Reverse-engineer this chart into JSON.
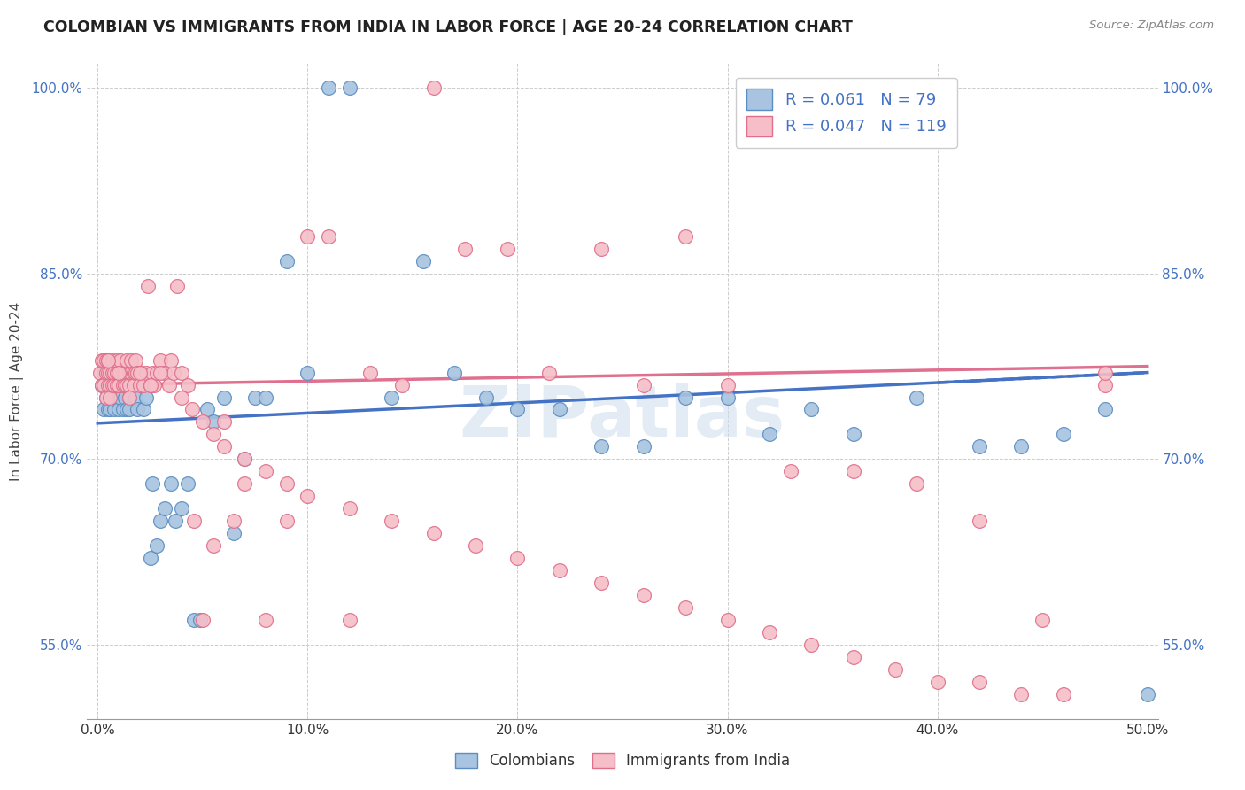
{
  "title": "COLOMBIAN VS IMMIGRANTS FROM INDIA IN LABOR FORCE | AGE 20-24 CORRELATION CHART",
  "source": "Source: ZipAtlas.com",
  "ylabel": "In Labor Force | Age 20-24",
  "xlim": [
    -0.005,
    0.505
  ],
  "ylim": [
    0.49,
    1.02
  ],
  "xtick_vals": [
    0.0,
    0.1,
    0.2,
    0.3,
    0.4,
    0.5
  ],
  "ytick_left": [
    1.0,
    0.85,
    0.7,
    0.55
  ],
  "ytick_right": [
    1.0,
    0.85,
    0.7,
    0.55
  ],
  "ytick_labels_left": [
    "100.0%",
    "85.0%",
    "70.0%",
    "55.0%"
  ],
  "ytick_labels_right": [
    "100.0%",
    "85.0%",
    "70.0%",
    "55.0%"
  ],
  "blue_fill": "#A8C4E0",
  "blue_edge": "#5B8EC4",
  "pink_fill": "#F5BEC8",
  "pink_edge": "#E0708A",
  "blue_line": "#4472C4",
  "pink_line": "#E07090",
  "R_blue": 0.061,
  "N_blue": 79,
  "R_pink": 0.047,
  "N_pink": 119,
  "watermark": "ZIPatlas",
  "blue_x": [
    0.002,
    0.003,
    0.003,
    0.004,
    0.004,
    0.004,
    0.005,
    0.005,
    0.005,
    0.006,
    0.006,
    0.007,
    0.007,
    0.008,
    0.008,
    0.009,
    0.009,
    0.009,
    0.01,
    0.01,
    0.011,
    0.011,
    0.012,
    0.012,
    0.013,
    0.013,
    0.014,
    0.014,
    0.015,
    0.015,
    0.016,
    0.017,
    0.018,
    0.019,
    0.02,
    0.021,
    0.022,
    0.023,
    0.025,
    0.026,
    0.028,
    0.03,
    0.032,
    0.035,
    0.037,
    0.04,
    0.043,
    0.046,
    0.049,
    0.052,
    0.055,
    0.06,
    0.065,
    0.07,
    0.075,
    0.08,
    0.09,
    0.1,
    0.11,
    0.12,
    0.14,
    0.155,
    0.17,
    0.185,
    0.2,
    0.22,
    0.24,
    0.26,
    0.28,
    0.3,
    0.32,
    0.34,
    0.36,
    0.39,
    0.42,
    0.44,
    0.46,
    0.48,
    0.5
  ],
  "blue_y": [
    0.76,
    0.74,
    0.77,
    0.75,
    0.78,
    0.76,
    0.74,
    0.76,
    0.77,
    0.75,
    0.74,
    0.77,
    0.76,
    0.75,
    0.74,
    0.77,
    0.76,
    0.75,
    0.76,
    0.74,
    0.75,
    0.77,
    0.74,
    0.76,
    0.77,
    0.75,
    0.74,
    0.76,
    0.75,
    0.74,
    0.76,
    0.77,
    0.75,
    0.74,
    0.77,
    0.76,
    0.74,
    0.75,
    0.62,
    0.68,
    0.63,
    0.65,
    0.66,
    0.68,
    0.65,
    0.66,
    0.68,
    0.57,
    0.57,
    0.74,
    0.73,
    0.75,
    0.64,
    0.7,
    0.75,
    0.75,
    0.86,
    0.77,
    1.0,
    1.0,
    0.75,
    0.86,
    0.77,
    0.75,
    0.74,
    0.74,
    0.71,
    0.71,
    0.75,
    0.75,
    0.72,
    0.74,
    0.72,
    0.75,
    0.71,
    0.71,
    0.72,
    0.74,
    0.51
  ],
  "pink_x": [
    0.001,
    0.002,
    0.002,
    0.003,
    0.003,
    0.004,
    0.004,
    0.004,
    0.005,
    0.005,
    0.005,
    0.006,
    0.006,
    0.006,
    0.007,
    0.007,
    0.007,
    0.008,
    0.008,
    0.009,
    0.009,
    0.009,
    0.01,
    0.01,
    0.011,
    0.011,
    0.012,
    0.012,
    0.013,
    0.013,
    0.014,
    0.014,
    0.015,
    0.015,
    0.016,
    0.016,
    0.017,
    0.017,
    0.018,
    0.018,
    0.019,
    0.02,
    0.021,
    0.022,
    0.023,
    0.024,
    0.025,
    0.026,
    0.027,
    0.028,
    0.03,
    0.032,
    0.034,
    0.036,
    0.038,
    0.04,
    0.043,
    0.046,
    0.05,
    0.055,
    0.06,
    0.065,
    0.07,
    0.08,
    0.09,
    0.1,
    0.11,
    0.12,
    0.13,
    0.145,
    0.16,
    0.175,
    0.195,
    0.215,
    0.24,
    0.26,
    0.28,
    0.3,
    0.33,
    0.36,
    0.39,
    0.42,
    0.45,
    0.48,
    0.005,
    0.01,
    0.015,
    0.02,
    0.025,
    0.03,
    0.035,
    0.04,
    0.045,
    0.05,
    0.055,
    0.06,
    0.07,
    0.08,
    0.09,
    0.1,
    0.12,
    0.14,
    0.16,
    0.18,
    0.2,
    0.22,
    0.24,
    0.26,
    0.28,
    0.3,
    0.32,
    0.34,
    0.36,
    0.38,
    0.4,
    0.42,
    0.44,
    0.46,
    0.48
  ],
  "pink_y": [
    0.77,
    0.76,
    0.78,
    0.76,
    0.78,
    0.75,
    0.77,
    0.78,
    0.76,
    0.77,
    0.78,
    0.77,
    0.76,
    0.75,
    0.78,
    0.76,
    0.77,
    0.77,
    0.76,
    0.77,
    0.78,
    0.76,
    0.77,
    0.76,
    0.77,
    0.78,
    0.76,
    0.77,
    0.76,
    0.77,
    0.78,
    0.76,
    0.77,
    0.76,
    0.77,
    0.78,
    0.77,
    0.76,
    0.77,
    0.78,
    0.77,
    0.76,
    0.77,
    0.76,
    0.77,
    0.84,
    0.76,
    0.77,
    0.76,
    0.77,
    0.78,
    0.77,
    0.76,
    0.77,
    0.84,
    0.77,
    0.76,
    0.65,
    0.57,
    0.63,
    0.73,
    0.65,
    0.68,
    0.57,
    0.65,
    0.88,
    0.88,
    0.57,
    0.77,
    0.76,
    1.0,
    0.87,
    0.87,
    0.77,
    0.87,
    0.76,
    0.88,
    0.76,
    0.69,
    0.69,
    0.68,
    0.65,
    0.57,
    0.76,
    0.78,
    0.77,
    0.75,
    0.77,
    0.76,
    0.77,
    0.78,
    0.75,
    0.74,
    0.73,
    0.72,
    0.71,
    0.7,
    0.69,
    0.68,
    0.67,
    0.66,
    0.65,
    0.64,
    0.63,
    0.62,
    0.61,
    0.6,
    0.59,
    0.58,
    0.57,
    0.56,
    0.55,
    0.54,
    0.53,
    0.52,
    0.52,
    0.51,
    0.51,
    0.77
  ]
}
